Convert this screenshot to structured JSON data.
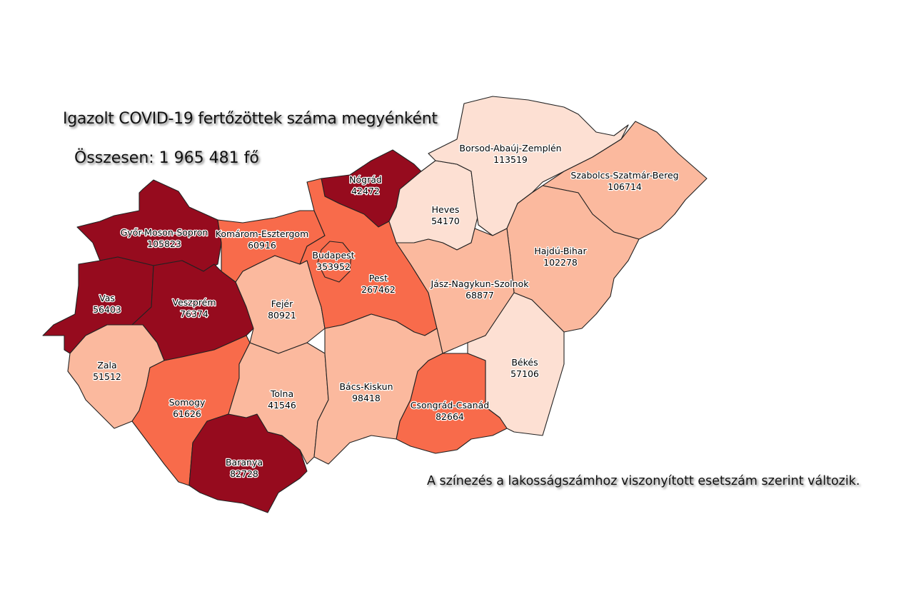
{
  "title": "Igazolt COVID-19 fertőzöttek száma megyénként",
  "total": "Összesen: 1 965 481 fő",
  "note": "A színezés a lakosságszámhoz viszonyított esetszám szerint változik.",
  "colors": {
    "very_high": "#960b1e",
    "high": "#f86b4b",
    "medium": "#fbb99e",
    "low": "#fde0d3",
    "border": "#222222"
  },
  "counties": [
    {
      "name": "Győr-Moson-Sopron",
      "value": "105823",
      "level": "very_high"
    },
    {
      "name": "Vas",
      "value": "56403",
      "level": "very_high"
    },
    {
      "name": "Veszprém",
      "value": "76374",
      "level": "very_high"
    },
    {
      "name": "Zala",
      "value": "51512",
      "level": "medium"
    },
    {
      "name": "Somogy",
      "value": "61626",
      "level": "high"
    },
    {
      "name": "Baranya",
      "value": "82728",
      "level": "very_high"
    },
    {
      "name": "Tolna",
      "value": "41546",
      "level": "medium"
    },
    {
      "name": "Fejér",
      "value": "80921",
      "level": "medium"
    },
    {
      "name": "Komárom-Esztergom",
      "value": "60916",
      "level": "high"
    },
    {
      "name": "Nógrád",
      "value": "42472",
      "level": "very_high"
    },
    {
      "name": "Pest",
      "value": "267462",
      "level": "high"
    },
    {
      "name": "Budapest",
      "value": "353952",
      "level": "high"
    },
    {
      "name": "Heves",
      "value": "54170",
      "level": "low"
    },
    {
      "name": "Borsod-Abaúj-Zemplén",
      "value": "113519",
      "level": "low"
    },
    {
      "name": "Szabolcs-Szatmár-Bereg",
      "value": "106714",
      "level": "medium"
    },
    {
      "name": "Hajdú-Bihar",
      "value": "102278",
      "level": "medium"
    },
    {
      "name": "Jász-Nagykun-Szolnok",
      "value": "68877",
      "level": "medium"
    },
    {
      "name": "Békés",
      "value": "57106",
      "level": "low"
    },
    {
      "name": "Csongrád-Csanád",
      "value": "82664",
      "level": "high"
    },
    {
      "name": "Bács-Kiskun",
      "value": "98418",
      "level": "medium"
    }
  ]
}
